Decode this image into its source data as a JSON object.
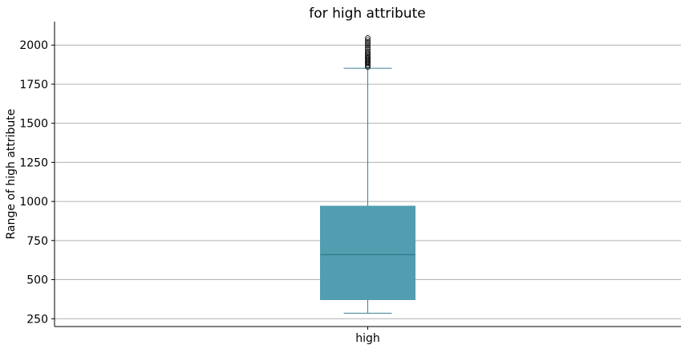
{
  "chart_data": {
    "type": "box",
    "title": "for high attribute",
    "xlabel": "",
    "ylabel": "Range of high attribute",
    "categories": [
      "high"
    ],
    "ylim": [
      200,
      2150
    ],
    "yticks": [
      250,
      500,
      750,
      1000,
      1250,
      1500,
      1750,
      2000
    ],
    "grid": true,
    "grid_axis": "y",
    "box": {
      "name": "high",
      "whisker_low": 285,
      "q1": 372,
      "median": 660,
      "q3": 970,
      "whisker_high": 1852,
      "outliers": [
        1860,
        1868,
        1876,
        1884,
        1892,
        1900,
        1908,
        1916,
        1924,
        1932,
        1940,
        1950,
        1960,
        1972,
        1984,
        1996,
        2008,
        2020,
        2032,
        2045
      ]
    },
    "colors": {
      "box_fill": "#529db0",
      "line": "#3a7f92",
      "median": "#2d6f80",
      "grid": "#b0b0b0",
      "axis": "#000000"
    }
  }
}
